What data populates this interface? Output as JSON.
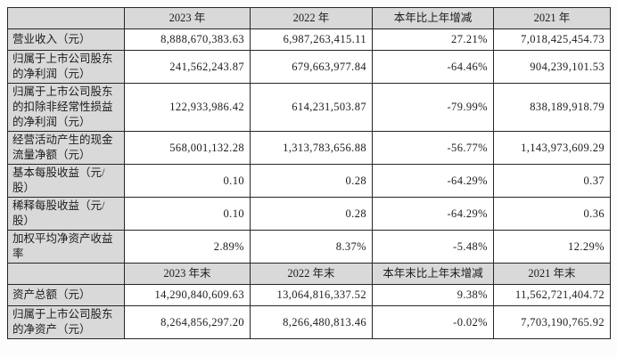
{
  "page": {
    "background": "#fcfcfc"
  },
  "colors": {
    "header_bg": "#d9d9d9",
    "label_bg": "#d9d9d9",
    "cell_bg": "#ffffff",
    "border": "#262626",
    "text": "#1c1c1c"
  },
  "table": {
    "sections": [
      {
        "corner": "",
        "header": [
          "2023 年",
          "2022 年",
          "本年比上年增减",
          "2021 年"
        ],
        "rows": [
          {
            "label": "营业收入（元）",
            "values": [
              "8,888,670,383.63",
              "6,987,263,415.11",
              "27.21%",
              "7,018,425,454.73"
            ]
          },
          {
            "label": "归属于上市公司股东的净利润（元）",
            "values": [
              "241,562,243.87",
              "679,663,977.84",
              "-64.46%",
              "904,239,101.53"
            ]
          },
          {
            "label": "归属于上市公司股东的扣除非经常性损益的净利润（元）",
            "values": [
              "122,933,986.42",
              "614,231,503.87",
              "-79.99%",
              "838,189,918.79"
            ]
          },
          {
            "label": "经营活动产生的现金流量净额（元）",
            "values": [
              "568,001,132.28",
              "1,313,783,656.88",
              "-56.77%",
              "1,143,973,609.29"
            ]
          },
          {
            "label": "基本每股收益（元/股）",
            "values": [
              "0.10",
              "0.28",
              "-64.29%",
              "0.37"
            ]
          },
          {
            "label": "稀释每股收益（元/股）",
            "values": [
              "0.10",
              "0.28",
              "-64.29%",
              "0.36"
            ]
          },
          {
            "label": "加权平均净资产收益率",
            "values": [
              "2.89%",
              "8.37%",
              "-5.48%",
              "12.29%"
            ]
          }
        ]
      },
      {
        "corner": "",
        "header": [
          "2023 年末",
          "2022 年末",
          "本年末比上年末增减",
          "2021 年末"
        ],
        "rows": [
          {
            "label": "资产总额（元）",
            "values": [
              "14,290,840,609.63",
              "13,064,816,337.52",
              "9.38%",
              "11,562,721,404.72"
            ]
          },
          {
            "label": "归属于上市公司股东的净资产（元）",
            "values": [
              "8,264,856,297.20",
              "8,266,480,813.46",
              "-0.02%",
              "7,703,190,765.92"
            ]
          }
        ]
      }
    ]
  }
}
